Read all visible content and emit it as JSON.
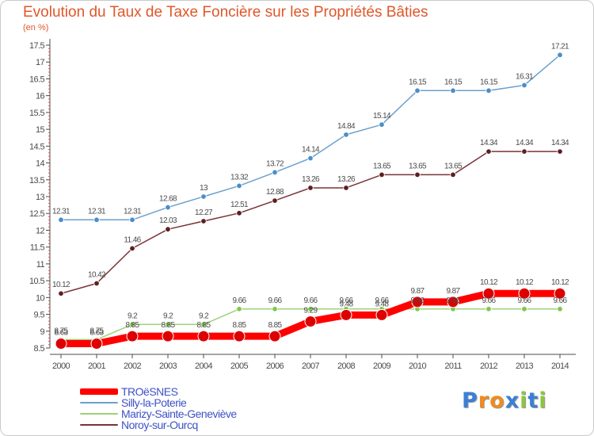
{
  "header": {
    "title": "Evolution du Taux de Taxe Foncière sur les Propriétés Bâties",
    "unit": "(en %)"
  },
  "colors": {
    "title": "#e0572a",
    "legend_text": "#3d52c6",
    "axis": "#4b4b4b"
  },
  "chart_data": {
    "type": "line",
    "title": "Evolution du Taux de Taxe Foncière sur les Propriétés Bâties",
    "ylabel": "(en %)",
    "xlabel": "",
    "x": [
      2000,
      2001,
      2002,
      2003,
      2004,
      2005,
      2006,
      2007,
      2008,
      2009,
      2010,
      2011,
      2012,
      2013,
      2014
    ],
    "ylim": [
      8.5,
      17.5
    ],
    "yticks": [
      8.5,
      9,
      9.5,
      10,
      10.5,
      11,
      11.5,
      12,
      12.5,
      13,
      13.5,
      14,
      14.5,
      15,
      15.5,
      16,
      16.5,
      17,
      17.5
    ],
    "grid": false,
    "legend_position": "bottom-left",
    "series": [
      {
        "name": "Silly-la-Poterie",
        "color": "#6aa1cf",
        "marker": "#4a8ec9",
        "values": [
          12.31,
          12.31,
          12.31,
          12.68,
          13,
          13.32,
          13.72,
          14.14,
          14.84,
          15.14,
          16.15,
          16.15,
          16.15,
          16.31,
          17.21
        ]
      },
      {
        "name": "Noroy-sur-Ourcq",
        "color": "#7a3333",
        "marker": "#5e1f1f",
        "values": [
          10.12,
          10.42,
          11.46,
          12.03,
          12.27,
          12.51,
          12.88,
          13.26,
          13.26,
          13.65,
          13.65,
          13.65,
          14.34,
          14.34,
          14.34
        ]
      },
      {
        "name": "Marizy-Sainte-Geneviève",
        "color": "#9dd17a",
        "marker": "#7ec84b",
        "values": [
          8.75,
          8.75,
          9.2,
          9.2,
          9.2,
          9.66,
          9.66,
          9.66,
          9.66,
          9.66,
          9.66,
          9.66,
          9.66,
          9.66,
          9.66
        ]
      },
      {
        "name": "TROëSNES",
        "color": "#ff0000",
        "marker": "#dd0000",
        "values": [
          8.63,
          8.63,
          8.85,
          8.85,
          8.85,
          8.85,
          8.85,
          9.29,
          9.48,
          9.48,
          9.87,
          9.87,
          10.12,
          10.12,
          10.12
        ]
      }
    ]
  },
  "legend": [
    {
      "label": "TROëSNES",
      "color": "#ff0000"
    },
    {
      "label": "Silly-la-Poterie",
      "color": "#6aa1cf"
    },
    {
      "label": "Marizy-Sainte-Geneviève",
      "color": "#9dd17a"
    },
    {
      "label": "Noroy-sur-Ourcq",
      "color": "#7a3333"
    }
  ],
  "logo": {
    "letters": [
      "P",
      "r",
      "o",
      "x",
      "i",
      "t",
      "i"
    ],
    "colors": [
      "#3b7fd6",
      "#f28a1e",
      "#f28a1e",
      "#3b7fd6",
      "#8cc63f",
      "#3b7fd6",
      "#8cc63f"
    ]
  }
}
